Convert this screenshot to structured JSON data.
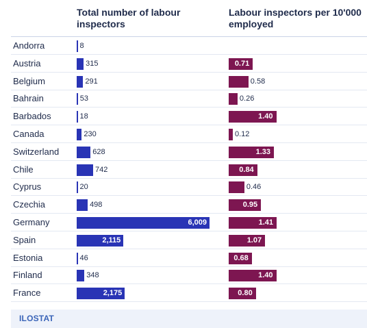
{
  "chart_data": {
    "type": "bar",
    "series": [
      {
        "name": "Total number of labour inspectors",
        "values": [
          8,
          315,
          291,
          53,
          18,
          230,
          628,
          742,
          20,
          498,
          6009,
          2115,
          46,
          348,
          2175
        ],
        "labels": [
          "8",
          "315",
          "291",
          "53",
          "18",
          "230",
          "628",
          "742",
          "20",
          "498",
          "6,009",
          "2,115",
          "46",
          "348",
          "2,175"
        ]
      },
      {
        "name": "Labour inspectors per 10'000 employed",
        "values": [
          null,
          0.71,
          0.58,
          0.26,
          1.4,
          0.12,
          1.33,
          0.84,
          0.46,
          0.95,
          1.41,
          1.07,
          0.68,
          1.4,
          0.8
        ],
        "labels": [
          "",
          "0.71",
          "0.58",
          "0.26",
          "1.40",
          "0.12",
          "1.33",
          "0.84",
          "0.46",
          "0.95",
          "1.41",
          "1.07",
          "0.68",
          "1.40",
          "0.80"
        ]
      }
    ],
    "categories": [
      "Andorra",
      "Austria",
      "Belgium",
      "Bahrain",
      "Barbados",
      "Canada",
      "Switzerland",
      "Chile",
      "Cyprus",
      "Czechia",
      "Germany",
      "Spain",
      "Estonia",
      "Finland",
      "France"
    ],
    "colors": {
      "total": "#2934b5",
      "per": "#7d1651"
    }
  },
  "headers": {
    "total": "Total number of labour inspectors",
    "per": "Labour inspectors per 10'000 employed"
  },
  "footer": {
    "source": "ILOSTAT"
  }
}
